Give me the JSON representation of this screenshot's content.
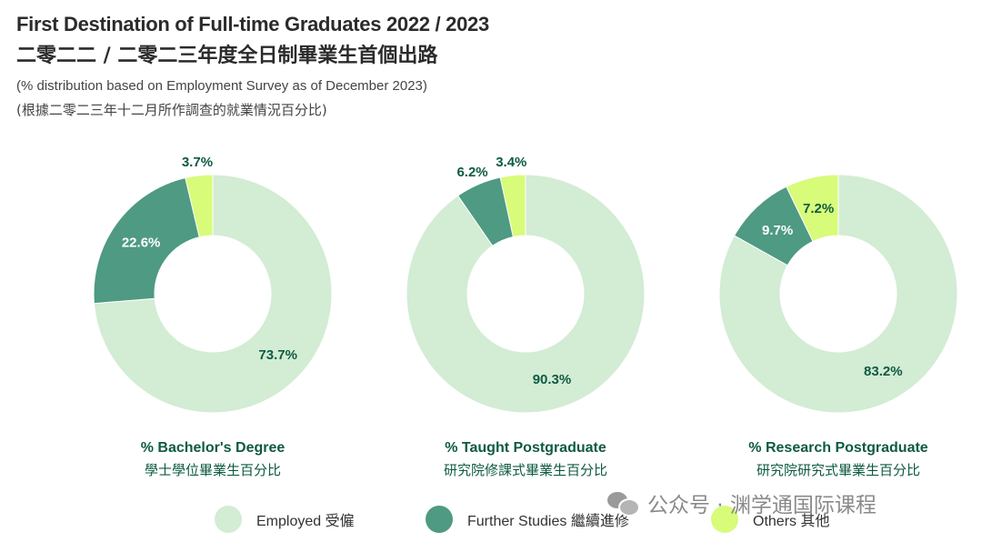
{
  "header": {
    "title_en": "First Destination of Full-time Graduates 2022 / 2023",
    "title_zh": "二零二二 / 二零二三年度全日制畢業生首個出路",
    "subtitle_en": "(% distribution based on Employment Survey as of December 2023)",
    "subtitle_zh": "(根據二零二三年十二月所作調查的就業情況百分比)"
  },
  "colors": {
    "employed": "#d3ecd4",
    "further_studies": "#4e9a82",
    "others": "#d8fb7a",
    "label_text": "#0e5a43",
    "label_on_dark": "#ffffff"
  },
  "chart_data": [
    {
      "type": "pie",
      "title": "% Bachelor's Degree",
      "title_zh": "學士學位畢業生百分比",
      "slices": [
        {
          "name": "Employed 受僱",
          "value": 73.7,
          "label": "73.7%"
        },
        {
          "name": "Further Studies 繼續進修",
          "value": 22.6,
          "label": "22.6%"
        },
        {
          "name": "Others 其他",
          "value": 3.7,
          "label": "3.7%"
        }
      ]
    },
    {
      "type": "pie",
      "title": "% Taught Postgraduate",
      "title_zh": "研究院修課式畢業生百分比",
      "slices": [
        {
          "name": "Employed 受僱",
          "value": 90.3,
          "label": "90.3%"
        },
        {
          "name": "Further Studies 繼續進修",
          "value": 6.2,
          "label": "6.2%"
        },
        {
          "name": "Others 其他",
          "value": 3.4,
          "label": "3.4%"
        }
      ]
    },
    {
      "type": "pie",
      "title": "% Research Postgraduate",
      "title_zh": "研究院研究式畢業生百分比",
      "slices": [
        {
          "name": "Employed 受僱",
          "value": 83.2,
          "label": "83.2%"
        },
        {
          "name": "Further Studies 繼續進修",
          "value": 9.7,
          "label": "9.7%"
        },
        {
          "name": "Others 其他",
          "value": 7.2,
          "label": "7.2%"
        }
      ]
    }
  ],
  "legend": [
    {
      "label": "Employed 受僱",
      "color": "#d3ecd4"
    },
    {
      "label": "Further Studies 繼續進修",
      "color": "#4e9a82"
    },
    {
      "label": "Others 其他",
      "color": "#d8fb7a"
    }
  ],
  "watermark": {
    "icon": "wechat-icon",
    "text": "公众号 · 渊学通国际课程"
  }
}
